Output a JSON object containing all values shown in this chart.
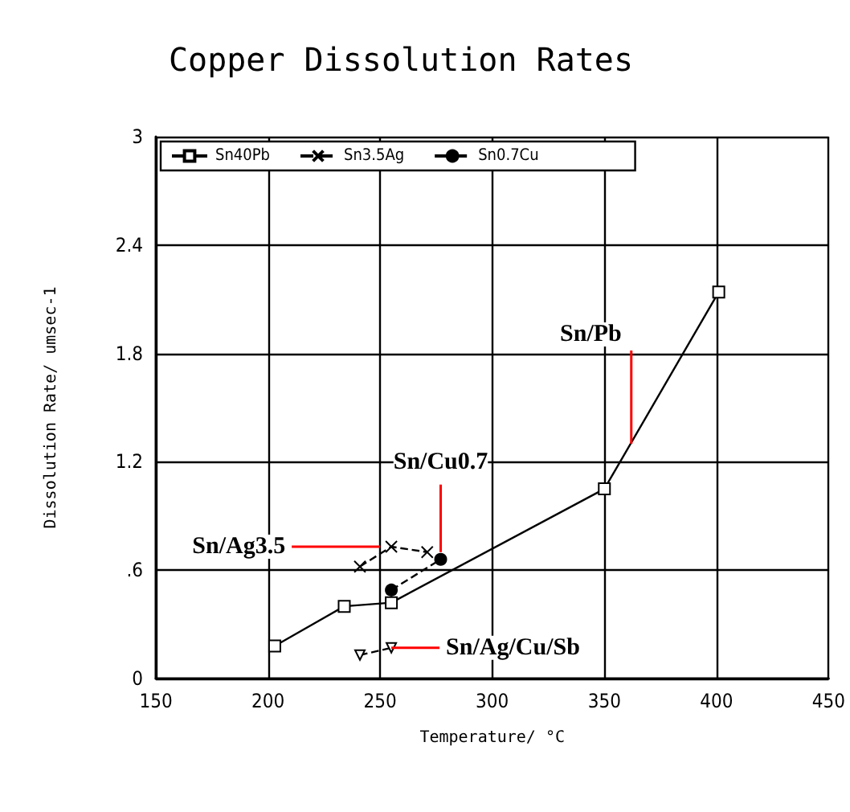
{
  "chart_data": {
    "type": "line",
    "title": "Copper Dissolution Rates",
    "xlabel": "Temperature/ °C",
    "ylabel": "Dissolution Rate/ umsec-1",
    "xlim": [
      150,
      450
    ],
    "xticks": [
      150,
      200,
      250,
      300,
      350,
      400,
      450
    ],
    "ylim": [
      0,
      3
    ],
    "yticks": [
      0,
      {
        "value": 0.6,
        "label": ".6"
      },
      1.2,
      1.8,
      2.4,
      3
    ],
    "grid": true,
    "legend": "top",
    "series": [
      {
        "name": "Sn40Pb",
        "color": "#000000",
        "marker": "square",
        "line_style": "solid",
        "x": [
          203,
          234,
          255,
          350,
          401
        ],
        "values": [
          0.18,
          0.4,
          0.42,
          1.05,
          2.14
        ]
      },
      {
        "name": "Sn3.5Ag",
        "color": "#000000",
        "marker": "cross",
        "line_style": "dashed",
        "x": [
          241,
          255,
          271
        ],
        "values": [
          0.62,
          0.73,
          0.7
        ]
      },
      {
        "color": "#000000",
        "marker": "triangle",
        "line_style": "dashed",
        "x": [
          241,
          255
        ],
        "values": [
          0.13,
          0.17
        ]
      },
      {
        "name": "Sn0.7Cu",
        "color": "#000000",
        "marker": "circle",
        "line_style": "dashed",
        "x": [
          255,
          277
        ],
        "values": [
          0.49,
          0.66
        ]
      }
    ],
    "annotations": [
      {
        "text": "Sn/Pb",
        "x": 362,
        "y": 1.3
      },
      {
        "text": "Sn/Cu0.7",
        "x": 277,
        "y": 0.7
      },
      {
        "text": "Sn/Ag3.5",
        "x": 250,
        "y": 0.73
      },
      {
        "text": "Sn/Ag/Cu/Sb",
        "x": 255,
        "y": 0.17
      }
    ]
  }
}
